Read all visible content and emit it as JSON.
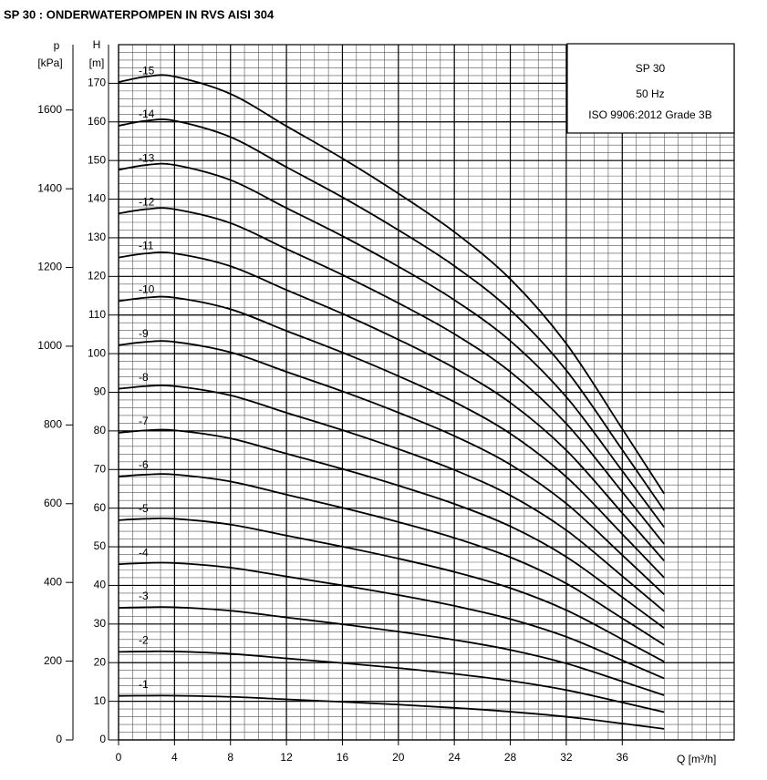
{
  "chart_data": {
    "type": "line",
    "title": "SP 30 : ONDERWATERPOMPEN IN RVS AISI 304",
    "annotations": [
      "SP 30",
      "50 Hz",
      "ISO 9906:2012 Grade 3B"
    ],
    "x_label": "Q [m³/h]",
    "y_label": [
      "H",
      "[m]"
    ],
    "y2_label": [
      "p",
      "[kPa]"
    ],
    "color": "#000000",
    "grid": true,
    "minor_grid": {
      "x": 1,
      "y": 2
    },
    "xlim": [
      0,
      44
    ],
    "xticks": [
      0,
      4,
      8,
      12,
      16,
      20,
      24,
      28,
      32,
      36
    ],
    "ylim": [
      0,
      180
    ],
    "yticks": [
      0,
      10,
      20,
      30,
      40,
      50,
      60,
      70,
      80,
      90,
      100,
      110,
      120,
      130,
      140,
      150,
      160,
      170
    ],
    "y2lim": [
      0,
      1766
    ],
    "y2ticks": [
      0,
      200,
      400,
      600,
      800,
      1000,
      1200,
      1400,
      1600
    ],
    "x": [
      0,
      2,
      4,
      8,
      12,
      16,
      20,
      24,
      28,
      32,
      36,
      39
    ],
    "series": [
      {
        "name": "-1",
        "values": [
          11.4,
          11.45,
          11.45,
          11.15,
          10.5,
          9.85,
          9.15,
          8.3,
          7.3,
          6.0,
          4.25,
          2.85
        ]
      },
      {
        "name": "-2",
        "values": [
          22.8,
          22.9,
          22.9,
          22.3,
          21.1,
          19.9,
          18.6,
          17.1,
          15.3,
          12.9,
          9.7,
          7.2
        ]
      },
      {
        "name": "-3",
        "values": [
          34.2,
          34.35,
          34.35,
          33.45,
          31.7,
          29.95,
          28.05,
          25.9,
          23.3,
          19.8,
          15.15,
          11.55
        ]
      },
      {
        "name": "-4",
        "values": [
          45.5,
          45.8,
          45.8,
          44.6,
          42.3,
          40.0,
          37.5,
          34.7,
          31.3,
          26.7,
          20.6,
          15.9
        ]
      },
      {
        "name": "-5",
        "values": [
          56.9,
          57.25,
          57.25,
          55.75,
          52.9,
          50.05,
          46.95,
          43.5,
          39.3,
          33.6,
          26.05,
          20.25
        ]
      },
      {
        "name": "-6",
        "values": [
          68.2,
          68.7,
          68.7,
          66.9,
          63.5,
          60.1,
          56.4,
          52.3,
          47.3,
          40.5,
          31.5,
          24.6
        ]
      },
      {
        "name": "-7",
        "values": [
          79.5,
          80.15,
          80.15,
          78.05,
          74.1,
          70.15,
          65.85,
          61.1,
          55.3,
          47.4,
          36.95,
          28.95
        ]
      },
      {
        "name": "-8",
        "values": [
          90.9,
          91.6,
          91.6,
          89.2,
          84.7,
          80.2,
          75.3,
          69.9,
          63.3,
          54.3,
          42.4,
          33.3
        ]
      },
      {
        "name": "-9",
        "values": [
          102.2,
          103.05,
          103.05,
          100.35,
          95.3,
          90.25,
          84.75,
          78.7,
          71.3,
          61.2,
          47.85,
          37.65
        ]
      },
      {
        "name": "-10",
        "values": [
          113.6,
          114.5,
          114.5,
          111.5,
          105.9,
          100.3,
          94.2,
          87.5,
          79.3,
          68.1,
          53.3,
          42.0
        ]
      },
      {
        "name": "-11",
        "values": [
          124.9,
          125.95,
          125.95,
          122.65,
          116.5,
          110.35,
          103.65,
          96.3,
          87.3,
          75.0,
          58.75,
          46.35
        ]
      },
      {
        "name": "-12",
        "values": [
          136.3,
          137.4,
          137.4,
          133.8,
          127.1,
          120.4,
          113.1,
          105.1,
          95.3,
          81.9,
          64.2,
          50.7
        ]
      },
      {
        "name": "-13",
        "values": [
          147.6,
          148.85,
          148.85,
          144.95,
          137.7,
          130.45,
          122.55,
          113.9,
          103.3,
          88.8,
          69.65,
          55.05
        ]
      },
      {
        "name": "-14",
        "values": [
          159.0,
          160.3,
          160.3,
          156.1,
          148.3,
          140.5,
          132.0,
          122.7,
          111.3,
          95.7,
          75.1,
          59.4
        ]
      },
      {
        "name": "-15",
        "values": [
          170.3,
          171.75,
          171.75,
          167.25,
          158.9,
          150.55,
          141.45,
          131.5,
          119.3,
          102.6,
          80.55,
          63.75
        ]
      }
    ]
  }
}
